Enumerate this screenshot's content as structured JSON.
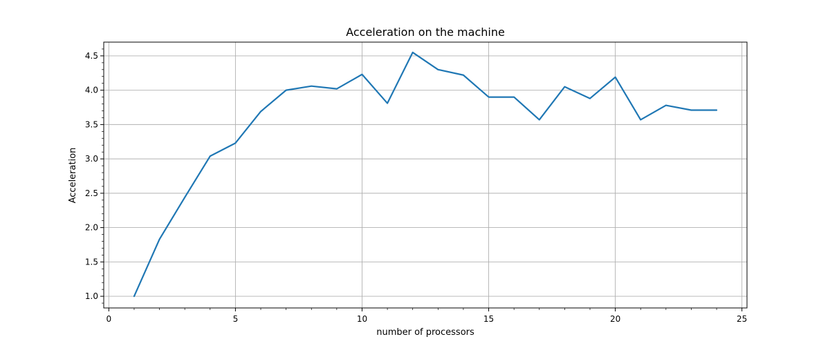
{
  "chart_data": {
    "type": "line",
    "title": "Acceleration on the machine",
    "xlabel": "number of processors",
    "ylabel": "Acceleration",
    "xlim": [
      -0.2,
      25.2
    ],
    "ylim": [
      0.83,
      4.7
    ],
    "xticks": [
      0,
      5,
      10,
      15,
      20,
      25
    ],
    "yticks": [
      1.0,
      1.5,
      2.0,
      2.5,
      3.0,
      3.5,
      4.0,
      4.5
    ],
    "xtick_labels": [
      "0",
      "5",
      "10",
      "15",
      "20",
      "25"
    ],
    "ytick_labels": [
      "1.0",
      "1.5",
      "2.0",
      "2.5",
      "3.0",
      "3.5",
      "4.0",
      "4.5"
    ],
    "grid": true,
    "series": [
      {
        "color": "#1f77b4",
        "x": [
          1,
          2,
          3,
          4,
          5,
          6,
          7,
          8,
          9,
          10,
          11,
          12,
          13,
          14,
          15,
          16,
          17,
          18,
          19,
          20,
          21,
          22,
          23,
          24
        ],
        "y": [
          1.0,
          1.83,
          2.44,
          3.04,
          3.23,
          3.69,
          4.0,
          4.06,
          4.02,
          4.23,
          3.81,
          4.55,
          4.3,
          4.22,
          3.9,
          3.9,
          3.57,
          4.05,
          3.88,
          4.19,
          3.57,
          3.78,
          3.71,
          3.71
        ]
      }
    ]
  }
}
